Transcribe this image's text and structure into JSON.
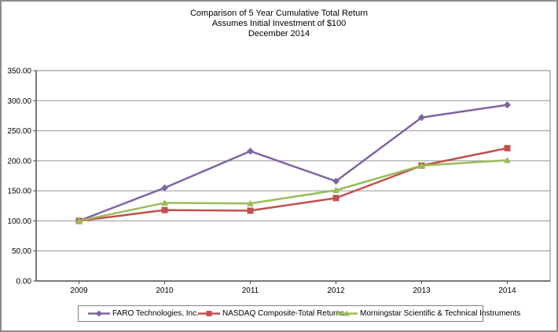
{
  "chart_data": {
    "type": "line",
    "title": "Comparison of 5 Year Cumulative Total Return",
    "subtitle": "Assumes Initial Investment of $100",
    "period_label": "December 2014",
    "categories": [
      "2009",
      "2010",
      "2011",
      "2012",
      "2013",
      "2014"
    ],
    "series": [
      {
        "name": "FARO Technologies, Inc.",
        "color": "#8064A2",
        "marker": "diamond",
        "values": [
          100,
          155,
          216,
          166,
          272,
          293
        ]
      },
      {
        "name": "NASDAQ Composite-Total Returns",
        "color": "#C0504D",
        "marker": "square",
        "values": [
          100,
          118,
          117,
          138,
          192,
          221
        ]
      },
      {
        "name": "Morningstar Scientific & Technical Instruments",
        "color": "#9BBB59",
        "marker": "triangle",
        "values": [
          100,
          130,
          129,
          151,
          192,
          201
        ]
      }
    ],
    "y_axis": {
      "min": 0,
      "max": 350,
      "step": 50,
      "tick_labels": [
        "0.00",
        "50.00",
        "100.00",
        "150.00",
        "200.00",
        "250.00",
        "300.00",
        "350.00"
      ]
    },
    "x_axis": {
      "tick_labels": [
        "2009",
        "2010",
        "2011",
        "2012",
        "2013",
        "2014"
      ]
    },
    "legend_position": "bottom",
    "grid": true
  },
  "colors": {
    "background": "#FFFFFF",
    "frame": "#8C8C8C",
    "gridline": "#959595",
    "plot_border": "#808080",
    "axis": "#4D4D4D",
    "text": "#000000"
  }
}
